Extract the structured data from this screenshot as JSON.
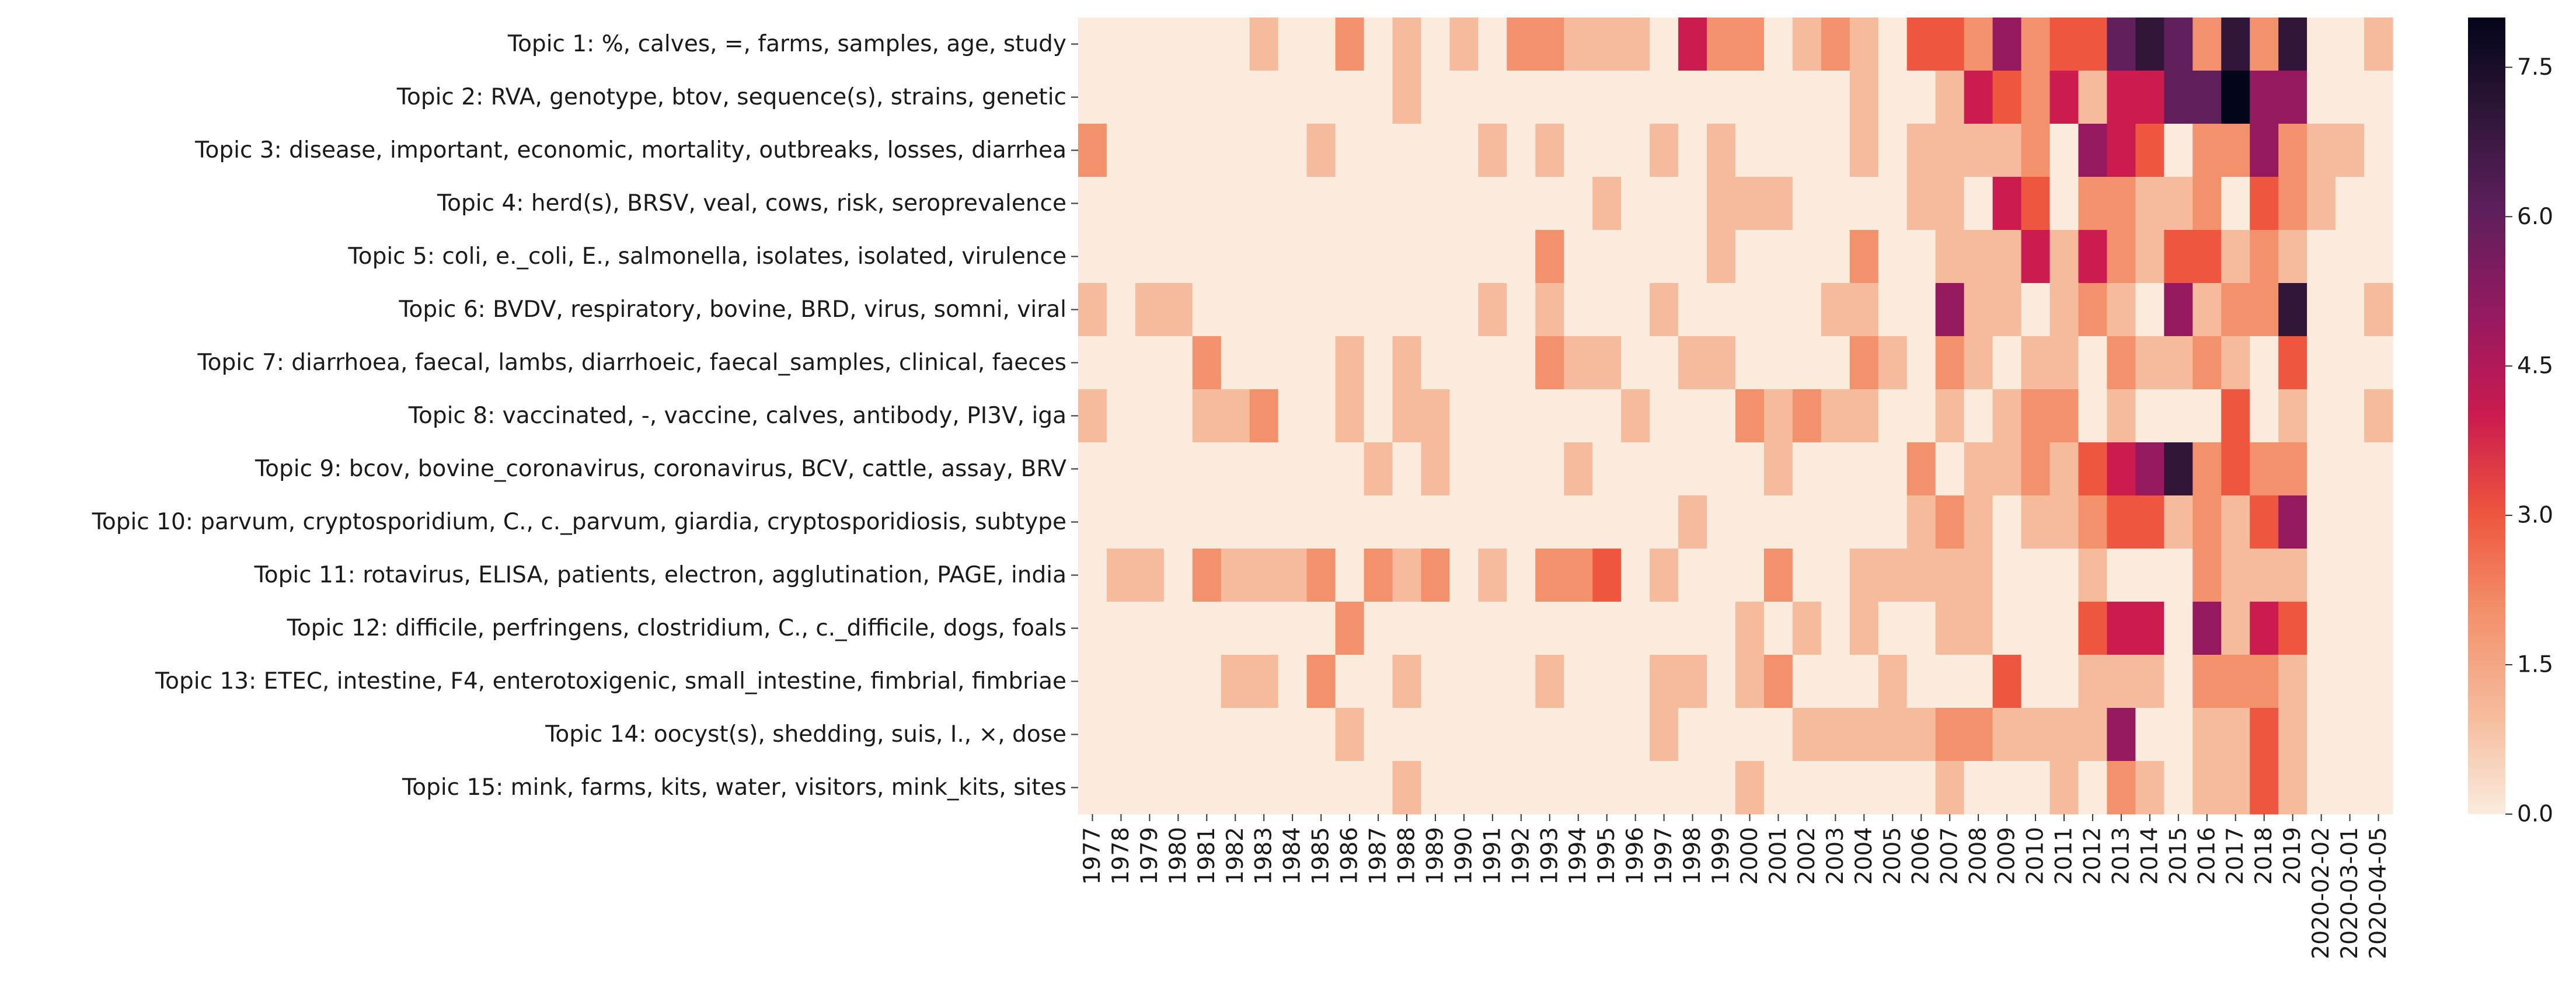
{
  "chart_data": {
    "type": "heatmap",
    "title": "",
    "xlabel": "",
    "ylabel": "",
    "x": [
      "1977",
      "1978",
      "1979",
      "1980",
      "1981",
      "1982",
      "1983",
      "1984",
      "1985",
      "1986",
      "1987",
      "1988",
      "1989",
      "1990",
      "1991",
      "1992",
      "1993",
      "1994",
      "1995",
      "1996",
      "1997",
      "1998",
      "1999",
      "2000",
      "2001",
      "2002",
      "2003",
      "2004",
      "2005",
      "2006",
      "2007",
      "2008",
      "2009",
      "2010",
      "2011",
      "2012",
      "2013",
      "2014",
      "2015",
      "2016",
      "2017",
      "2018",
      "2019",
      "2020-02-02",
      "2020-03-01",
      "2020-04-05"
    ],
    "y": [
      "Topic 1: %, calves, =, farms, samples, age, study",
      "Topic 2: RVA, genotype, btov, sequence(s), strains, genetic",
      "Topic 3: disease, important, economic, mortality, outbreaks, losses, diarrhea",
      "Topic 4: herd(s), BRSV, veal, cows, risk, seroprevalence",
      "Topic 5: coli, e._coli, E., salmonella, isolates, isolated, virulence",
      "Topic 6: BVDV, respiratory, bovine, BRD, virus, somni, viral",
      "Topic 7: diarrhoea, faecal, lambs, diarrhoeic, faecal_samples, clinical, faeces",
      "Topic 8: vaccinated, -, vaccine, calves, antibody, PI3V, iga",
      "Topic 9: bcov, bovine_coronavirus, coronavirus, BCV, cattle, assay, BRV",
      "Topic 10: parvum, cryptosporidium, C., c._parvum, giardia, cryptosporidiosis, subtype",
      "Topic 11: rotavirus, ELISA, patients, electron, agglutination, PAGE, india",
      "Topic 12: difficile, perfringens, clostridium, C., c._difficile, dogs, foals",
      "Topic 13: ETEC, intestine, F4, enterotoxigenic, small_intestine, fimbrial, fimbriae",
      "Topic 14: oocyst(s), shedding, suis, I., ×, dose",
      "Topic 15: mink, farms, kits, water, visitors, mink_kits, sites"
    ],
    "values": [
      [
        0,
        0,
        0,
        0,
        0,
        0,
        1,
        0,
        0,
        2,
        0,
        1,
        0,
        1,
        0,
        2,
        2,
        1,
        1,
        1,
        0,
        4,
        2,
        2,
        0,
        1,
        2,
        1,
        0,
        3,
        3,
        2,
        5,
        2,
        3,
        3,
        6,
        7,
        6,
        2,
        7,
        2,
        7,
        0,
        0,
        1
      ],
      [
        0,
        0,
        0,
        0,
        0,
        0,
        0,
        0,
        0,
        0,
        0,
        1,
        0,
        0,
        0,
        0,
        0,
        0,
        0,
        0,
        0,
        0,
        0,
        0,
        0,
        0,
        0,
        1,
        0,
        0,
        1,
        4,
        3,
        2,
        4,
        1,
        4,
        4,
        6,
        6,
        8,
        5,
        5,
        0,
        0,
        0
      ],
      [
        2,
        0,
        0,
        0,
        0,
        0,
        0,
        0,
        1,
        0,
        0,
        0,
        0,
        0,
        1,
        0,
        1,
        0,
        0,
        0,
        1,
        0,
        1,
        0,
        0,
        0,
        0,
        1,
        0,
        1,
        1,
        1,
        1,
        2,
        0,
        5,
        4,
        3,
        0,
        2,
        2,
        5,
        2,
        1,
        1,
        0
      ],
      [
        0,
        0,
        0,
        0,
        0,
        0,
        0,
        0,
        0,
        0,
        0,
        0,
        0,
        0,
        0,
        0,
        0,
        0,
        1,
        0,
        0,
        0,
        1,
        1,
        1,
        0,
        0,
        0,
        0,
        1,
        1,
        0,
        4,
        3,
        0,
        2,
        2,
        1,
        1,
        2,
        0,
        3,
        2,
        1,
        0,
        0
      ],
      [
        0,
        0,
        0,
        0,
        0,
        0,
        0,
        0,
        0,
        0,
        0,
        0,
        0,
        0,
        0,
        0,
        2,
        0,
        0,
        0,
        0,
        0,
        1,
        0,
        0,
        0,
        0,
        2,
        0,
        0,
        1,
        1,
        1,
        4,
        1,
        4,
        2,
        1,
        3,
        3,
        1,
        2,
        1,
        0,
        0,
        0
      ],
      [
        1,
        0,
        1,
        1,
        0,
        0,
        0,
        0,
        0,
        0,
        0,
        0,
        0,
        0,
        1,
        0,
        1,
        0,
        0,
        0,
        1,
        0,
        0,
        0,
        0,
        0,
        1,
        1,
        0,
        0,
        5,
        1,
        1,
        0,
        1,
        2,
        1,
        0,
        5,
        1,
        2,
        2,
        7,
        0,
        0,
        1
      ],
      [
        0,
        0,
        0,
        0,
        2,
        0,
        0,
        0,
        0,
        1,
        0,
        1,
        0,
        0,
        0,
        0,
        2,
        1,
        1,
        0,
        0,
        1,
        1,
        0,
        0,
        0,
        0,
        2,
        1,
        0,
        2,
        1,
        0,
        1,
        1,
        0,
        2,
        1,
        1,
        2,
        1,
        0,
        3,
        0,
        0,
        0
      ],
      [
        1,
        0,
        0,
        0,
        1,
        1,
        2,
        0,
        0,
        1,
        0,
        1,
        1,
        0,
        0,
        0,
        0,
        0,
        0,
        1,
        0,
        0,
        0,
        2,
        1,
        2,
        1,
        1,
        0,
        0,
        1,
        0,
        1,
        2,
        2,
        0,
        1,
        0,
        0,
        0,
        3,
        0,
        1,
        0,
        0,
        1
      ],
      [
        0,
        0,
        0,
        0,
        0,
        0,
        0,
        0,
        0,
        0,
        1,
        0,
        1,
        0,
        0,
        0,
        0,
        1,
        0,
        0,
        0,
        0,
        0,
        0,
        1,
        0,
        0,
        0,
        0,
        2,
        0,
        1,
        1,
        2,
        1,
        3,
        4,
        5,
        7,
        2,
        3,
        2,
        2,
        0,
        0,
        0
      ],
      [
        0,
        0,
        0,
        0,
        0,
        0,
        0,
        0,
        0,
        0,
        0,
        0,
        0,
        0,
        0,
        0,
        0,
        0,
        0,
        0,
        0,
        1,
        0,
        0,
        0,
        0,
        0,
        0,
        0,
        1,
        2,
        1,
        0,
        1,
        1,
        2,
        3,
        3,
        1,
        2,
        1,
        3,
        5,
        0,
        0,
        0
      ],
      [
        0,
        1,
        1,
        0,
        2,
        1,
        1,
        1,
        2,
        0,
        2,
        1,
        2,
        0,
        1,
        0,
        2,
        2,
        3,
        0,
        1,
        0,
        0,
        0,
        2,
        0,
        0,
        1,
        1,
        1,
        1,
        1,
        0,
        0,
        0,
        1,
        0,
        0,
        0,
        2,
        1,
        1,
        1,
        0,
        0,
        0
      ],
      [
        0,
        0,
        0,
        0,
        0,
        0,
        0,
        0,
        0,
        2,
        0,
        0,
        0,
        0,
        0,
        0,
        0,
        0,
        0,
        0,
        0,
        0,
        0,
        1,
        0,
        1,
        0,
        1,
        0,
        0,
        1,
        1,
        0,
        0,
        0,
        3,
        4,
        4,
        0,
        5,
        1,
        4,
        3,
        0,
        0,
        0
      ],
      [
        0,
        0,
        0,
        0,
        0,
        1,
        1,
        0,
        2,
        0,
        0,
        1,
        0,
        0,
        0,
        0,
        1,
        0,
        0,
        0,
        1,
        1,
        0,
        1,
        2,
        0,
        0,
        0,
        1,
        0,
        0,
        0,
        3,
        0,
        0,
        1,
        1,
        1,
        0,
        2,
        2,
        2,
        1,
        0,
        0,
        0
      ],
      [
        0,
        0,
        0,
        0,
        0,
        0,
        0,
        0,
        0,
        1,
        0,
        0,
        0,
        0,
        0,
        0,
        0,
        0,
        0,
        0,
        1,
        0,
        0,
        0,
        0,
        1,
        1,
        1,
        1,
        1,
        2,
        2,
        1,
        1,
        1,
        1,
        5,
        0,
        0,
        1,
        1,
        3,
        1,
        0,
        0,
        0
      ],
      [
        0,
        0,
        0,
        0,
        0,
        0,
        0,
        0,
        0,
        0,
        0,
        1,
        0,
        0,
        0,
        0,
        0,
        0,
        0,
        0,
        0,
        0,
        0,
        1,
        0,
        0,
        0,
        0,
        0,
        0,
        1,
        0,
        0,
        0,
        1,
        0,
        2,
        1,
        0,
        1,
        1,
        3,
        1,
        0,
        0,
        0
      ]
    ],
    "vmin": 0,
    "vmax": 8,
    "colorbar_ticks": [
      "0.0",
      "1.5",
      "3.0",
      "4.5",
      "6.0",
      "7.5"
    ],
    "colormap": "rocket_r",
    "grid": false,
    "legend": "colorbar-right"
  }
}
